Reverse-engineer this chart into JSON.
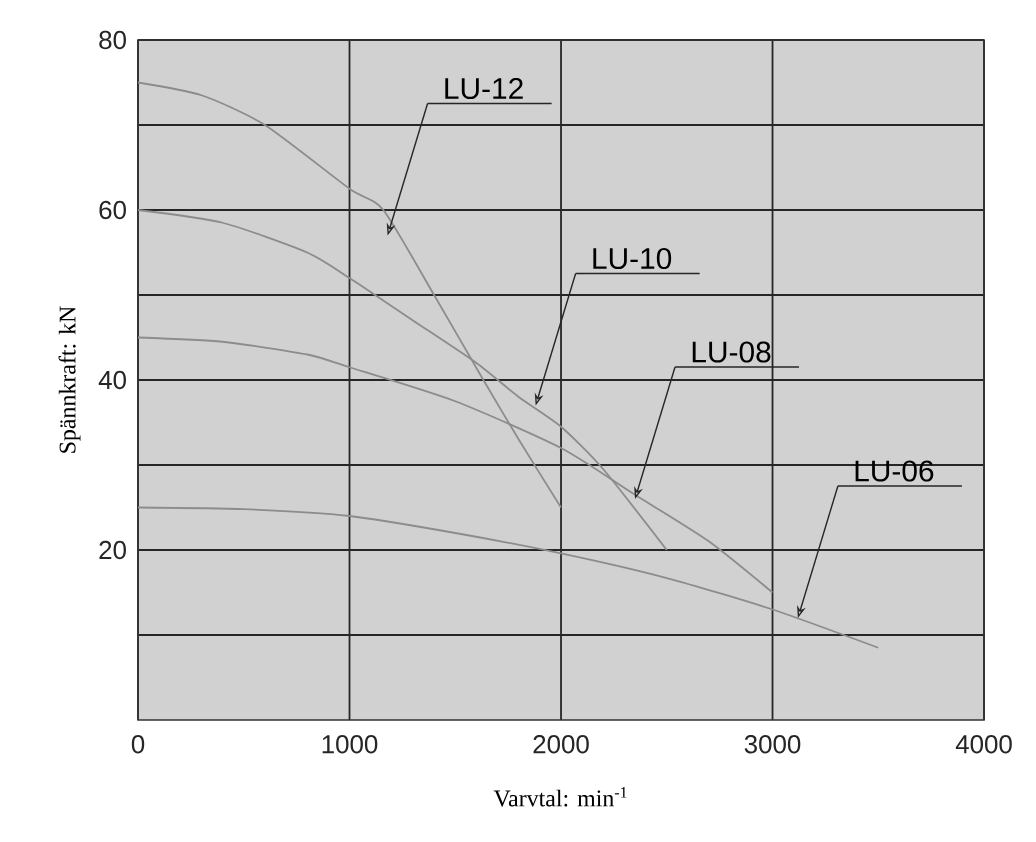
{
  "chart_data": {
    "type": "line",
    "xlabel": "Varvtal: min$^{-1}$",
    "ylabel": "Spännkraft: kN",
    "series": [
      {
        "color": "#8c8c8c",
        "x": [
          0,
          300,
          600,
          1000,
          1160,
          1400,
          1633,
          1800,
          2000
        ],
        "values": [
          75,
          73.5,
          70,
          62.5,
          60,
          50,
          40,
          33,
          25
        ]
      },
      {
        "color": "#8c8c8c",
        "x": [
          0,
          400,
          800,
          1000,
          1300,
          1600,
          1800,
          2000,
          2200,
          2500
        ],
        "values": [
          60,
          58.5,
          55,
          52,
          47,
          42,
          38,
          34.5,
          29.5,
          20
        ]
      },
      {
        "color": "#8c8c8c",
        "x": [
          0,
          400,
          800,
          1000,
          1500,
          2000,
          2350,
          2700,
          3000
        ],
        "values": [
          45,
          44.5,
          43,
          41.5,
          37.5,
          32,
          26.5,
          21,
          15
        ]
      },
      {
        "color": "#8c8c8c",
        "x": [
          0,
          500,
          1000,
          1500,
          2000,
          2500,
          3000,
          3500
        ],
        "values": [
          25,
          24.8,
          24,
          22,
          19.6,
          16.7,
          13,
          8.5
        ]
      }
    ],
    "annotations": [
      {
        "text": "LU-12",
        "x": 1180,
        "y": 57
      },
      {
        "text": "LU-10",
        "x": 1880,
        "y": 37
      },
      {
        "text": "LU-08",
        "x": 2350,
        "y": 26
      },
      {
        "text": "LU-06",
        "x": 3120,
        "y": 12
      }
    ],
    "xlim": [
      0,
      4000
    ],
    "ylim": [
      0,
      80
    ],
    "xticks": [
      0,
      1000,
      2000,
      3000,
      4000
    ],
    "yticks": [
      {
        "value": 10,
        "label": null
      },
      20,
      {
        "value": 30,
        "label": null
      },
      40,
      {
        "value": 50,
        "label": null
      },
      60,
      {
        "value": 70,
        "label": null
      },
      80
    ],
    "grid": true,
    "marker": "none",
    "line_style": "solid"
  }
}
